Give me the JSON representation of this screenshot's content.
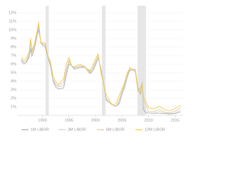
{
  "chart_data": {
    "type": "line",
    "x": [
      1986,
      1986.5,
      1987,
      1987.5,
      1987.8,
      1988,
      1988.5,
      1989,
      1989.3,
      1989.7,
      1990,
      1990.5,
      1991,
      1991.5,
      1992,
      1992.5,
      1993,
      1994,
      1994.5,
      1995,
      1995.5,
      1996,
      1997,
      1998,
      1998.8,
      1999,
      1999.5,
      2000,
      2000.5,
      2001,
      2001.5,
      2002,
      2003,
      2003.5,
      2004,
      2004.5,
      2005,
      2005.5,
      2006,
      2006.5,
      2007,
      2007.5,
      2008,
      2008.5,
      2008.8,
      2009,
      2009.5,
      2010,
      2011,
      2012,
      2013,
      2014,
      2015,
      2016
    ],
    "series": [
      {
        "name": "1M LIBOR",
        "color": "#a9a9a9",
        "values": [
          6.4,
          6.0,
          6.2,
          6.8,
          7.8,
          6.9,
          7.8,
          9.3,
          10.0,
          8.6,
          8.2,
          8.0,
          6.9,
          5.8,
          4.0,
          3.3,
          3.1,
          3.2,
          4.7,
          6.0,
          5.8,
          5.4,
          5.6,
          5.6,
          5.3,
          4.9,
          5.2,
          5.9,
          6.7,
          5.6,
          3.9,
          1.8,
          1.3,
          1.1,
          1.1,
          1.4,
          2.5,
          3.3,
          4.5,
          5.3,
          5.3,
          5.4,
          3.2,
          2.5,
          3.9,
          0.7,
          0.3,
          0.25,
          0.24,
          0.24,
          0.2,
          0.16,
          0.2,
          0.44
        ]
      },
      {
        "name": "3M LIBOR",
        "color": "#cfcfcf",
        "values": [
          6.5,
          6.2,
          6.3,
          7.0,
          8.5,
          7.2,
          8.0,
          9.5,
          10.3,
          8.7,
          8.3,
          8.2,
          7.0,
          6.0,
          4.2,
          3.5,
          3.3,
          3.5,
          5.0,
          6.3,
          5.8,
          5.5,
          5.7,
          5.7,
          5.2,
          5.0,
          5.4,
          6.1,
          6.8,
          5.5,
          3.8,
          1.9,
          1.3,
          1.1,
          1.1,
          1.6,
          2.7,
          3.5,
          4.6,
          5.5,
          5.4,
          5.4,
          3.0,
          2.8,
          4.0,
          1.2,
          0.5,
          0.25,
          0.3,
          0.45,
          0.28,
          0.23,
          0.3,
          0.62
        ]
      },
      {
        "name": "6M LIBOR",
        "color": "#d9c99c",
        "values": [
          6.6,
          6.3,
          6.4,
          7.2,
          8.8,
          7.4,
          8.2,
          9.7,
          10.5,
          8.6,
          8.4,
          8.3,
          7.0,
          6.1,
          4.3,
          3.7,
          3.4,
          3.9,
          5.4,
          6.5,
          5.8,
          5.6,
          5.8,
          5.7,
          5.1,
          5.1,
          5.6,
          6.3,
          7.0,
          5.3,
          3.8,
          2.0,
          1.3,
          1.1,
          1.2,
          1.9,
          2.9,
          3.7,
          4.8,
          5.6,
          5.3,
          5.3,
          2.9,
          3.0,
          3.9,
          1.7,
          1.2,
          0.4,
          0.45,
          0.7,
          0.4,
          0.33,
          0.5,
          0.9
        ]
      },
      {
        "name": "12M LIBOR",
        "color": "#f2c440",
        "values": [
          6.8,
          6.5,
          6.7,
          7.5,
          9.0,
          7.6,
          8.4,
          9.9,
          10.9,
          8.4,
          8.5,
          8.5,
          7.0,
          6.3,
          4.6,
          4.0,
          3.6,
          4.3,
          6.0,
          6.8,
          5.8,
          5.7,
          6.0,
          5.7,
          4.9,
          5.3,
          5.9,
          6.6,
          7.2,
          5.0,
          3.8,
          2.4,
          1.4,
          1.2,
          1.5,
          2.4,
          3.1,
          3.9,
          5.0,
          5.6,
          5.3,
          5.1,
          2.8,
          3.3,
          3.6,
          2.2,
          1.6,
          0.9,
          0.75,
          1.05,
          0.7,
          0.55,
          0.8,
          1.2
        ]
      }
    ],
    "recessions": [
      [
        1990.6,
        1991.2
      ],
      [
        2001.2,
        2001.9
      ],
      [
        2007.9,
        2009.5
      ]
    ],
    "xlim": [
      1985.5,
      2016.5
    ],
    "xticks": [
      1990,
      1995,
      2000,
      2005,
      2010,
      2015
    ],
    "ylim": [
      0,
      12.5
    ],
    "yticks": [
      {
        "value": 1,
        "label": "1%"
      },
      {
        "value": 2,
        "label": "2%"
      },
      {
        "value": 3,
        "label": "3%"
      },
      {
        "value": 4,
        "label": "4%"
      },
      {
        "value": 5,
        "label": "5%"
      },
      {
        "value": 6,
        "label": "6%"
      },
      {
        "value": 7,
        "label": "7%"
      },
      {
        "value": 8,
        "label": "8%"
      },
      {
        "value": 9,
        "label": "9%"
      },
      {
        "value": 10,
        "label": "10%"
      },
      {
        "value": 11,
        "label": "11%"
      },
      {
        "value": 12,
        "label": "12%"
      }
    ],
    "grid": true
  }
}
